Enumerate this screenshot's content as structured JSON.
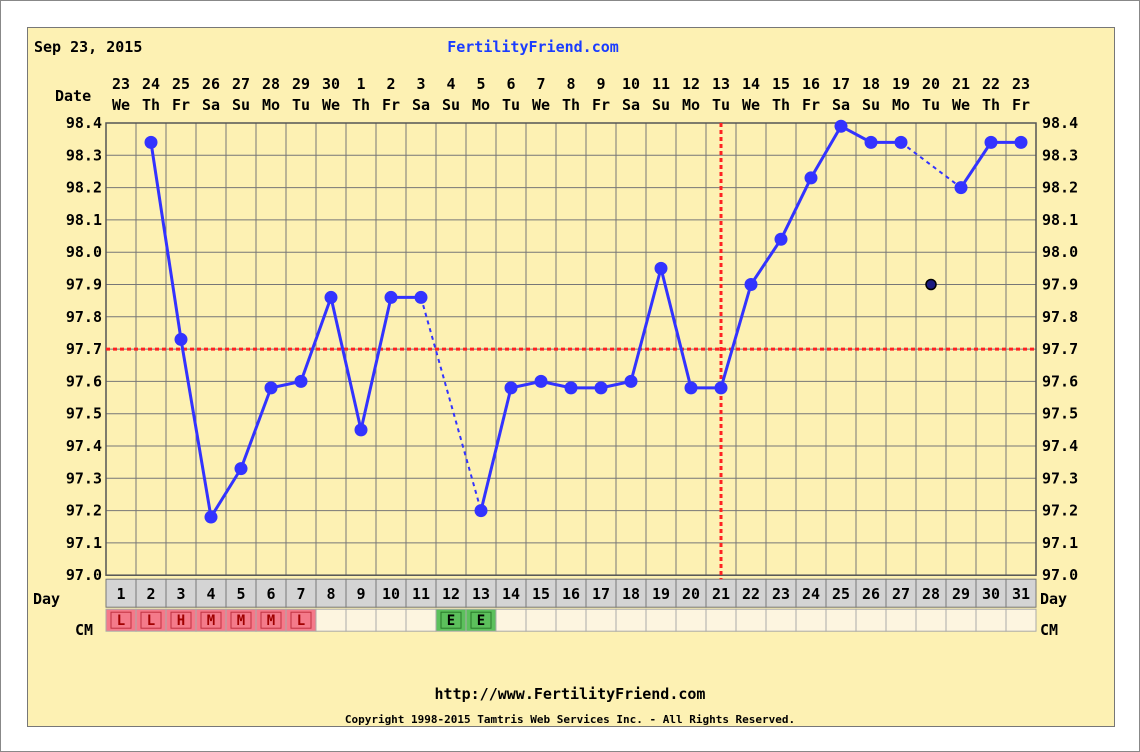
{
  "header": {
    "date": "Sep 23, 2015",
    "site": "FertilityFriend.com"
  },
  "footer": {
    "url": "http://www.FertilityFriend.com",
    "copyright": "Copyright 1998-2015 Tamtris Web Services Inc. - All Rights Reserved."
  },
  "labels": {
    "date": "Date",
    "day": "Day",
    "cm": "CM"
  },
  "colors": {
    "background": "#fdf1b3",
    "line": "#3333ff",
    "coverline": "#ff2222",
    "ovulation_line": "#ff2222",
    "cm_red": "#f47a8a",
    "cm_green": "#5cc05c",
    "cm_empty": "#fdf5e0",
    "day_cell": "#d4d4d4"
  },
  "chart_data": {
    "type": "line",
    "y_ticks": [
      "97.0",
      "97.1",
      "97.2",
      "97.3",
      "97.4",
      "97.5",
      "97.6",
      "97.7",
      "97.8",
      "97.9",
      "98.0",
      "98.1",
      "98.2",
      "98.3",
      "98.4"
    ],
    "ylim": [
      97.0,
      98.4
    ],
    "grid": true,
    "dates": [
      "23",
      "24",
      "25",
      "26",
      "27",
      "28",
      "29",
      "30",
      "1",
      "2",
      "3",
      "4",
      "5",
      "6",
      "7",
      "8",
      "9",
      "10",
      "11",
      "12",
      "13",
      "14",
      "15",
      "16",
      "17",
      "18",
      "19",
      "20",
      "21",
      "22",
      "23"
    ],
    "weekdays": [
      "We",
      "Th",
      "Fr",
      "Sa",
      "Su",
      "Mo",
      "Tu",
      "We",
      "Th",
      "Fr",
      "Sa",
      "Su",
      "Mo",
      "Tu",
      "We",
      "Th",
      "Fr",
      "Sa",
      "Su",
      "Mo",
      "Tu",
      "We",
      "Th",
      "Fr",
      "Sa",
      "Su",
      "Mo",
      "Tu",
      "We",
      "Th",
      "Fr"
    ],
    "cycle_days": [
      "1",
      "2",
      "3",
      "4",
      "5",
      "6",
      "7",
      "8",
      "9",
      "10",
      "11",
      "12",
      "13",
      "14",
      "15",
      "16",
      "17",
      "18",
      "19",
      "20",
      "21",
      "22",
      "23",
      "24",
      "25",
      "26",
      "27",
      "28",
      "29",
      "30",
      "31"
    ],
    "cervical_mucus": [
      "L",
      "L",
      "H",
      "M",
      "M",
      "M",
      "L",
      "",
      "",
      "",
      "",
      "E",
      "E",
      "",
      "",
      "",
      "",
      "",
      "",
      "",
      "",
      "",
      "",
      "",
      "",
      "",
      "",
      "",
      "",
      "",
      ""
    ],
    "temperatures": [
      null,
      98.34,
      97.73,
      97.18,
      97.33,
      97.58,
      97.6,
      97.86,
      97.45,
      97.86,
      97.86,
      null,
      97.2,
      97.58,
      97.6,
      97.58,
      97.58,
      97.6,
      97.95,
      97.58,
      97.58,
      97.9,
      98.04,
      98.23,
      98.39,
      98.34,
      98.34,
      97.9,
      98.2,
      98.34,
      98.34
    ],
    "discarded_days": [
      28
    ],
    "coverline": 97.7,
    "ovulation_day": 21
  }
}
